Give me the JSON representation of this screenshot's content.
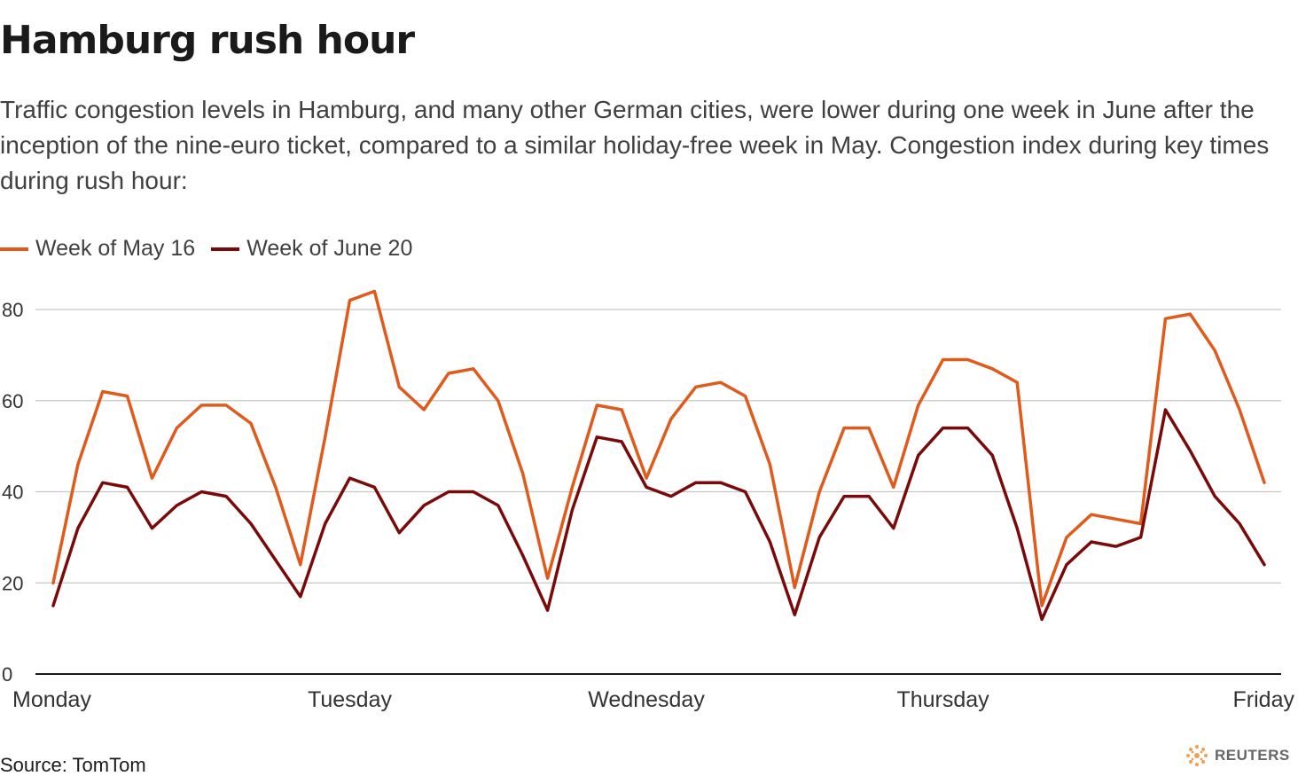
{
  "title": "Hamburg rush hour",
  "subtitle": "Traffic congestion levels in Hamburg, and many other German cities, were lower during one week in June after the inception of the nine-euro ticket, compared to a similar holiday-free week in May. Congestion index during key times during rush hour:",
  "source": "Source: TomTom",
  "logo": {
    "text": "REUTERS",
    "icon": "reuters-logo-icon"
  },
  "colors": {
    "may": "#e05a1c",
    "june": "#7a0a0a",
    "grid": "#c8c8c8",
    "axis": "#1a1a1a"
  },
  "chart_data": {
    "type": "line",
    "x_labels": [
      "Monday",
      "Tuesday",
      "Wednesday",
      "Thursday",
      "Friday"
    ],
    "x_label_index": [
      0,
      12,
      24,
      36,
      48
    ],
    "yticks": [
      0,
      20,
      40,
      60,
      80
    ],
    "ylim": [
      0,
      85
    ],
    "grid": "horizontal",
    "legend_position": "top-left",
    "series": [
      {
        "name": "Week of May 16",
        "color": "#e05a1c",
        "values": [
          20,
          46,
          62,
          61,
          43,
          54,
          59,
          59,
          55,
          41,
          24,
          52,
          82,
          84,
          63,
          58,
          66,
          67,
          60,
          44,
          21,
          41,
          59,
          58,
          43,
          56,
          63,
          64,
          61,
          46,
          19,
          40,
          54,
          54,
          41,
          59,
          69,
          69,
          67,
          64,
          15,
          30,
          35,
          34,
          33,
          78,
          79,
          71,
          58,
          42
        ]
      },
      {
        "name": "Week of June 20",
        "color": "#7a0a0a",
        "values": [
          15,
          32,
          42,
          41,
          32,
          37,
          40,
          39,
          33,
          25,
          17,
          33,
          43,
          41,
          31,
          37,
          40,
          40,
          37,
          26,
          14,
          36,
          52,
          51,
          41,
          39,
          42,
          42,
          40,
          29,
          13,
          30,
          39,
          39,
          32,
          48,
          54,
          54,
          48,
          32,
          12,
          24,
          29,
          28,
          30,
          58,
          49,
          39,
          33,
          24
        ]
      }
    ]
  }
}
